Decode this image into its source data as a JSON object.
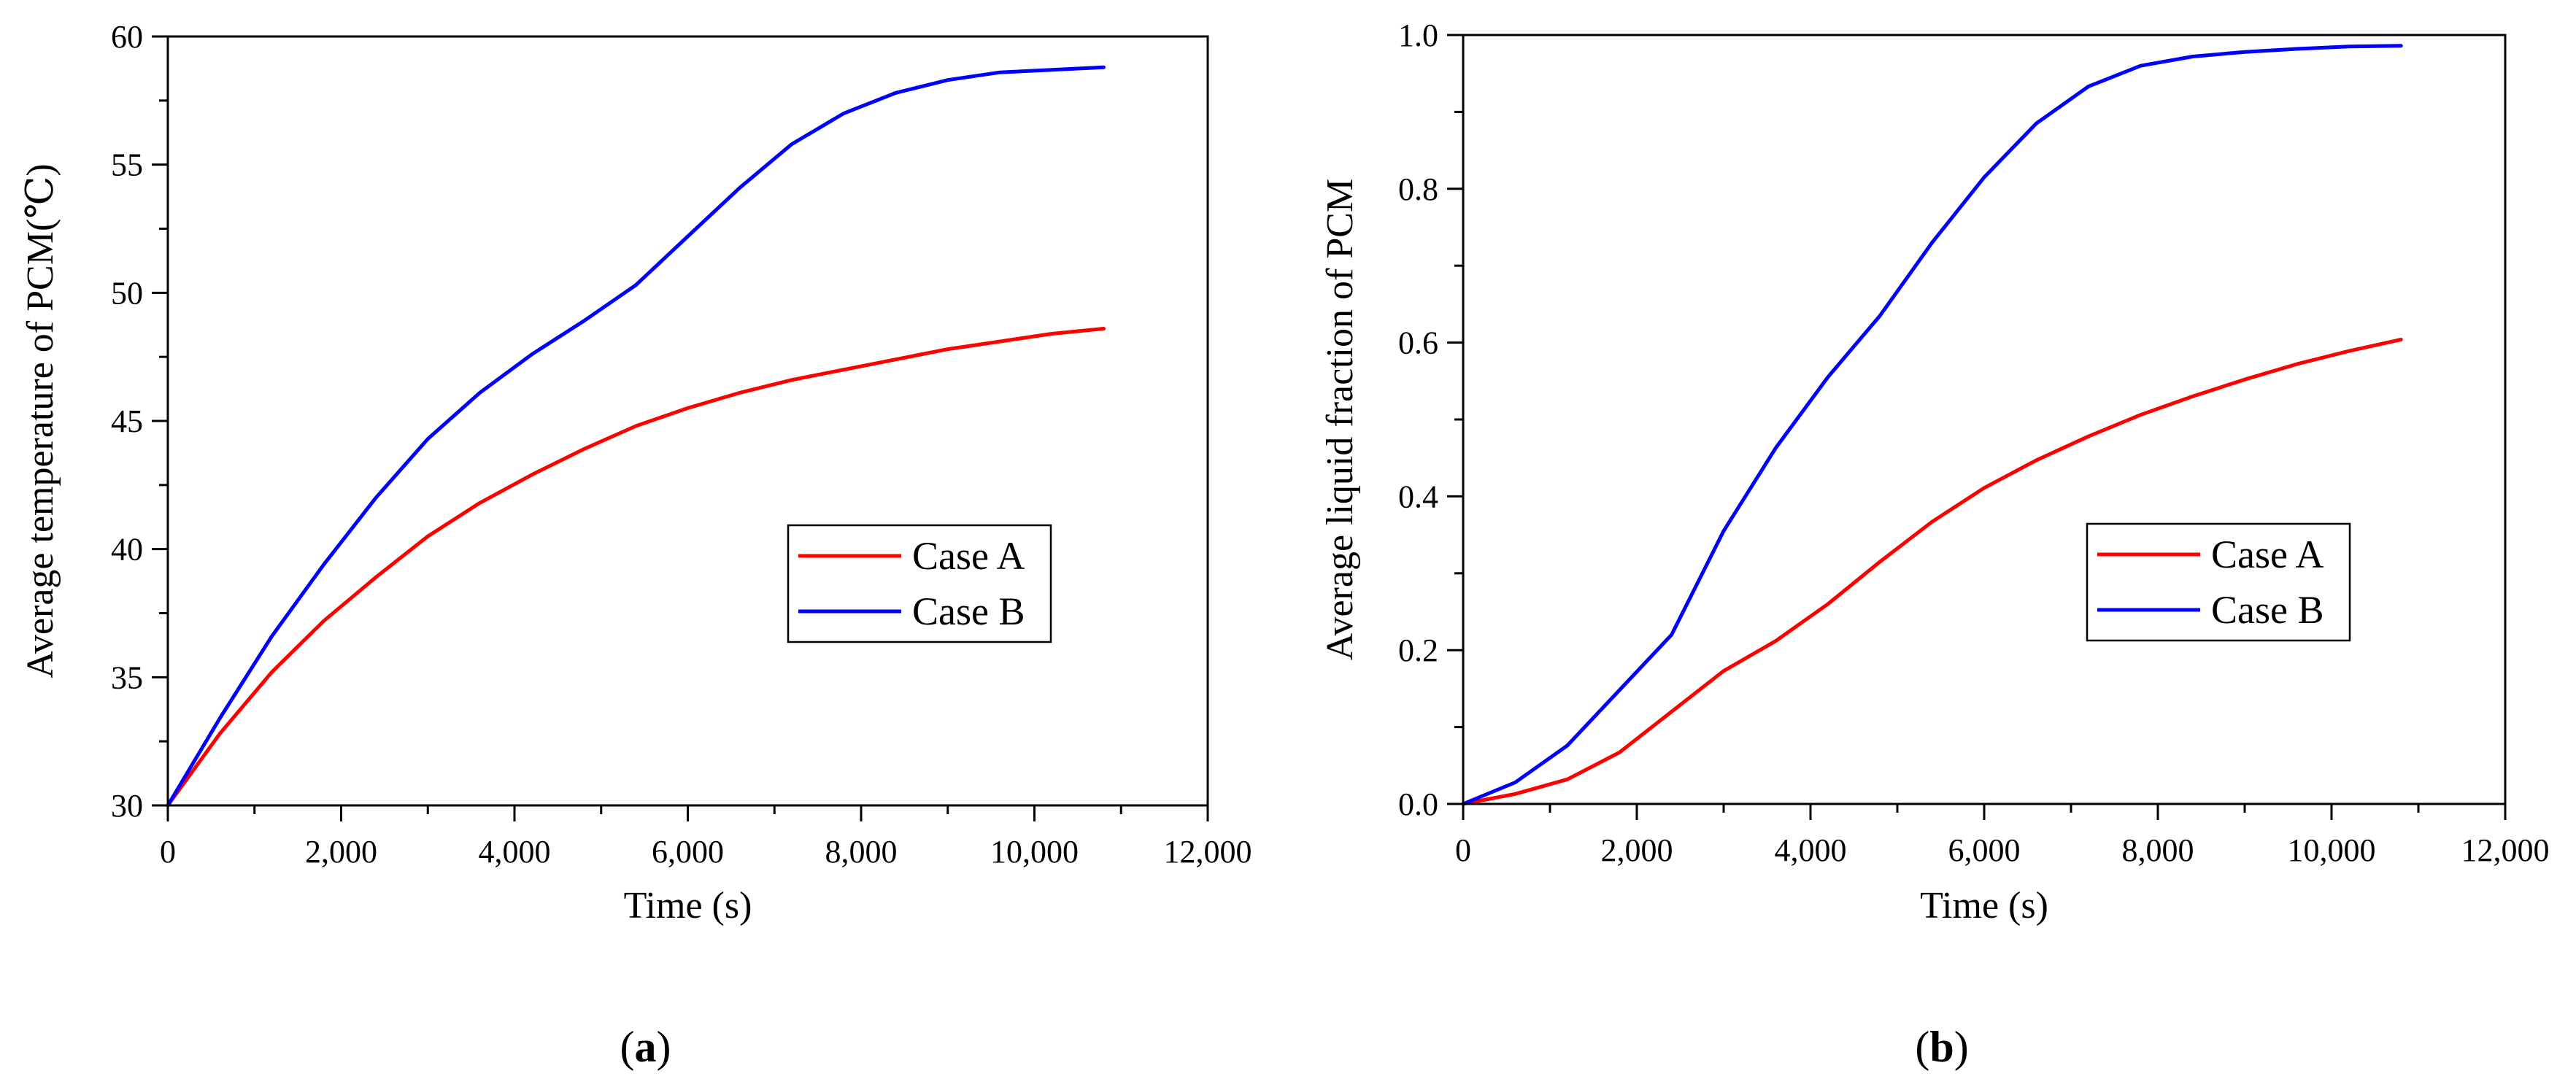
{
  "chart_data": [
    {
      "type": "line",
      "panel_label": "(a)",
      "panel_letter": "a",
      "xlabel": "Time (s)",
      "ylabel": "Average temperature of PCM(℃)",
      "xlim": [
        0,
        12000
      ],
      "ylim": [
        30,
        60
      ],
      "xticks": [
        0,
        2000,
        4000,
        6000,
        8000,
        10000,
        12000
      ],
      "xtick_labels": [
        "0",
        "2,000",
        "4,000",
        "6,000",
        "8,000",
        "10,000",
        "12,000"
      ],
      "yticks": [
        30,
        35,
        40,
        45,
        50,
        55,
        60
      ],
      "ytick_labels": [
        "30",
        "35",
        "40",
        "45",
        "50",
        "55",
        "60"
      ],
      "grid": false,
      "legend_position": "center-right",
      "series": [
        {
          "name": "Case A",
          "color": "#ff0000",
          "x": [
            0,
            600,
            1200,
            1800,
            2400,
            3000,
            3600,
            4200,
            4800,
            5400,
            6000,
            6600,
            7200,
            7800,
            8400,
            9000,
            9600,
            10200,
            10800
          ],
          "y": [
            30,
            32.8,
            35.2,
            37.2,
            38.9,
            40.5,
            41.8,
            42.9,
            43.9,
            44.8,
            45.5,
            46.1,
            46.6,
            47.0,
            47.4,
            47.8,
            48.1,
            48.4,
            48.6
          ]
        },
        {
          "name": "Case B",
          "color": "#0000ff",
          "x": [
            0,
            600,
            1200,
            1800,
            2400,
            3000,
            3600,
            4200,
            4800,
            5400,
            6000,
            6600,
            7200,
            7800,
            8400,
            9000,
            9600,
            10200,
            10800
          ],
          "y": [
            30,
            33.4,
            36.6,
            39.4,
            42.0,
            44.3,
            46.1,
            47.6,
            48.9,
            50.3,
            52.2,
            54.1,
            55.8,
            57.0,
            57.8,
            58.3,
            58.6,
            58.7,
            58.8
          ]
        }
      ]
    },
    {
      "type": "line",
      "panel_label": "(b)",
      "panel_letter": "b",
      "xlabel": "Time (s)",
      "ylabel": "Average liquid fraction of PCM",
      "xlim": [
        0,
        12000
      ],
      "ylim": [
        0,
        1.0
      ],
      "xticks": [
        0,
        2000,
        4000,
        6000,
        8000,
        10000,
        12000
      ],
      "xtick_labels": [
        "0",
        "2,000",
        "4,000",
        "6,000",
        "8,000",
        "10,000",
        "12,000"
      ],
      "yticks": [
        0,
        0.2,
        0.4,
        0.6,
        0.8,
        1.0
      ],
      "ytick_labels": [
        "0.0",
        "0.2",
        "0.4",
        "0.6",
        "0.8",
        "1.0"
      ],
      "grid": false,
      "legend_position": "center-right",
      "series": [
        {
          "name": "Case A",
          "color": "#ff0000",
          "x": [
            0,
            600,
            1200,
            1800,
            2400,
            3000,
            3600,
            4200,
            4800,
            5400,
            6000,
            6600,
            7200,
            7800,
            8400,
            9000,
            9600,
            10200,
            10800
          ],
          "y": [
            0,
            0.013,
            0.032,
            0.067,
            0.12,
            0.173,
            0.212,
            0.26,
            0.315,
            0.367,
            0.411,
            0.447,
            0.478,
            0.506,
            0.53,
            0.552,
            0.572,
            0.589,
            0.604
          ]
        },
        {
          "name": "Case B",
          "color": "#0000ff",
          "x": [
            0,
            600,
            1200,
            1800,
            2400,
            3000,
            3600,
            4200,
            4800,
            5400,
            6000,
            6600,
            7200,
            7800,
            8400,
            9000,
            9600,
            10200,
            10800
          ],
          "y": [
            0,
            0.028,
            0.076,
            0.148,
            0.22,
            0.355,
            0.463,
            0.555,
            0.635,
            0.73,
            0.815,
            0.885,
            0.933,
            0.96,
            0.972,
            0.978,
            0.982,
            0.985,
            0.986
          ]
        }
      ]
    }
  ]
}
